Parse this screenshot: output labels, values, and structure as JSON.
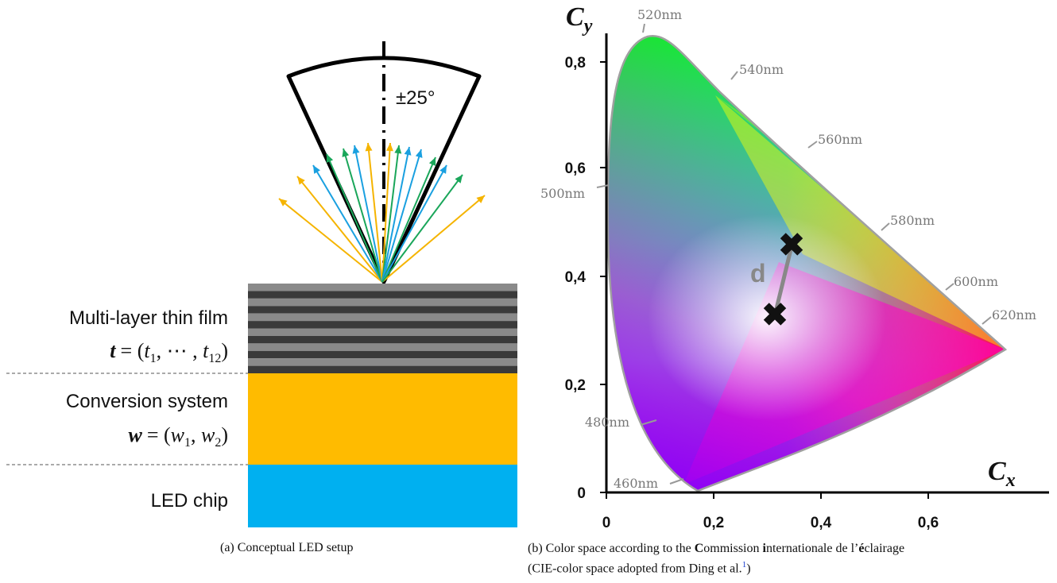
{
  "left": {
    "angle_label": "±25°",
    "layers": [
      {
        "line1": "Multi-layer thin film",
        "var": "t",
        "sym": "= (",
        "sub_a": "t",
        "sub_a_idx": "1",
        "mid": ", ⋯ , ",
        "sub_b": "t",
        "sub_b_idx": "12",
        "end": ")"
      },
      {
        "line1": "Conversion system",
        "var": "w",
        "sym": "= (",
        "sub_a": "w",
        "sub_a_idx": "1",
        "mid": ", ",
        "sub_b": "w",
        "sub_b_idx": "2",
        "end": ")"
      },
      {
        "line1": "LED chip"
      }
    ],
    "colors": {
      "yellow": "#ffbb00",
      "blue": "#00b0f0",
      "dark_stripe": "#3a3a3a",
      "light_stripe": "#8a8a8a",
      "green_ray": "#1aa65a",
      "blue_ray": "#1aa0e0",
      "yellow_ray": "#f5b400"
    }
  },
  "right": {
    "y_axis_label": "C",
    "y_axis_sub": "y",
    "x_axis_label": "C",
    "x_axis_sub": "x",
    "x_ticks": [
      "0",
      "0,2",
      "0,4",
      "0,6"
    ],
    "y_ticks": [
      "0",
      "0,2",
      "0,4",
      "0,6",
      "0,8"
    ],
    "wavelengths": [
      "520nm",
      "540nm",
      "560nm",
      "580nm",
      "600nm",
      "620nm",
      "500nm",
      "480nm",
      "460nm"
    ],
    "distance_label": "d"
  },
  "captions": {
    "a": "(a)  Conceptual LED setup",
    "b_prefix": "(b)  Color space according to the ",
    "b_C": "C",
    "b_t1": "ommission ",
    "b_i": "i",
    "b_t2": "nternationale de l’",
    "b_e": "é",
    "b_t3": "clairage",
    "b_line2": "(CIE-color space adopted from Ding et al.",
    "b_ref": "1",
    "b_end": ")"
  }
}
